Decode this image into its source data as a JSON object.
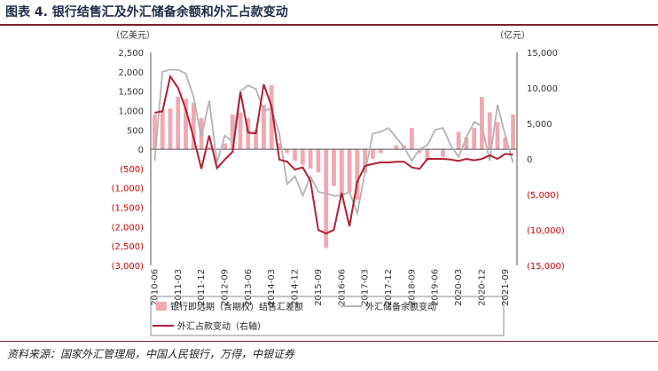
{
  "page": {
    "title": "图表 4. 银行结售汇及外汇储备余额和外汇占款变动",
    "source": "资料来源：国家外汇管理局，中国人民银行，万得，中银证券"
  },
  "colors": {
    "bar": "#f0a9b0",
    "gray": "#b3b3b3",
    "red": "#b21f35",
    "neg_label": "#cc0000",
    "axis": "#333333"
  },
  "chart_data": {
    "type": "bar",
    "left_unit": "（亿美元）",
    "right_unit": "（亿元）",
    "left_axis": {
      "min": -3000,
      "max": 2500,
      "ticks": [
        2500,
        2000,
        1500,
        1000,
        500,
        0,
        -500,
        -1000,
        -1500,
        -2000,
        -2500,
        -3000
      ],
      "tick_labels": [
        "2,500",
        "2,000",
        "1,500",
        "1,000",
        "500",
        "0",
        "(500)",
        "(1,000)",
        "(1,500)",
        "(2,000)",
        "(2,500)",
        "(3,000)"
      ]
    },
    "right_axis": {
      "min": -15000,
      "max": 15000,
      "ticks": [
        15000,
        10000,
        5000,
        0,
        -5000,
        -10000,
        -15000
      ],
      "tick_labels": [
        "15,000",
        "10,000",
        "5,000",
        "0",
        "(5,000)",
        "(10,000)",
        "(15,000)"
      ]
    },
    "x_labels": [
      "2010-06",
      "2011-03",
      "2011-12",
      "2012-09",
      "2013-06",
      "2014-03",
      "2014-12",
      "2015-09",
      "2016-06",
      "2017-03",
      "2017-12",
      "2018-09",
      "2019-06",
      "2020-03",
      "2020-12",
      "2021-09"
    ],
    "categories": [
      "2010Q2",
      "2010Q3",
      "2010Q4",
      "2011Q1",
      "2011Q2",
      "2011Q3",
      "2011Q4",
      "2012Q1",
      "2012Q2",
      "2012Q3",
      "2012Q4",
      "2013Q1",
      "2013Q2",
      "2013Q3",
      "2013Q4",
      "2014Q1",
      "2014Q2",
      "2014Q3",
      "2014Q4",
      "2015Q1",
      "2015Q2",
      "2015Q3",
      "2015Q4",
      "2016Q1",
      "2016Q2",
      "2016Q3",
      "2016Q4",
      "2017Q1",
      "2017Q2",
      "2017Q3",
      "2017Q4",
      "2018Q1",
      "2018Q2",
      "2018Q3",
      "2018Q4",
      "2019Q1",
      "2019Q2",
      "2019Q3",
      "2019Q4",
      "2020Q1",
      "2020Q2",
      "2020Q3",
      "2020Q4",
      "2021Q1",
      "2021Q2",
      "2021Q3",
      "2021Q4"
    ],
    "series": [
      {
        "name": "银行即远期（含期权）结售汇差额",
        "kind": "bar",
        "axis": "left",
        "values": [
          900,
          1000,
          1050,
          1350,
          1300,
          1200,
          800,
          50,
          0,
          150,
          900,
          950,
          800,
          500,
          1150,
          1650,
          150,
          -100,
          -300,
          -400,
          -500,
          -600,
          -2550,
          -950,
          -1250,
          -1100,
          -1300,
          -600,
          -250,
          -100,
          0,
          100,
          100,
          550,
          -100,
          -300,
          0,
          -200,
          0,
          450,
          300,
          550,
          1350,
          950,
          700,
          300,
          900
        ]
      },
      {
        "name": "外汇储备余额变动",
        "kind": "line",
        "axis": "left",
        "values": [
          -300,
          2000,
          2050,
          2050,
          1950,
          1350,
          300,
          1250,
          -350,
          350,
          200,
          1500,
          1650,
          1550,
          1000,
          1050,
          400,
          -900,
          -700,
          -1200,
          -700,
          -1100,
          -1150,
          -1200,
          -1200,
          -1100,
          -1650,
          -600,
          400,
          450,
          550,
          300,
          50,
          -300,
          0,
          100,
          500,
          550,
          100,
          -200,
          300,
          700,
          600,
          -300,
          1150,
          350,
          -350
        ]
      },
      {
        "name": "外汇占款变动（右轴）",
        "kind": "line",
        "axis": "right",
        "values": [
          6500,
          6700,
          11600,
          10000,
          7000,
          3000,
          -1400,
          3300,
          -1300,
          -100,
          1000,
          9400,
          3700,
          3600,
          10500,
          7400,
          -100,
          -400,
          -1500,
          -1200,
          -3100,
          -10000,
          -10500,
          -10000,
          -4800,
          -9500,
          -3200,
          -1000,
          -700,
          -500,
          -500,
          -400,
          -400,
          -1200,
          -1400,
          0,
          0,
          0,
          -100,
          -300,
          0,
          -200,
          0,
          500,
          0,
          700,
          600
        ]
      }
    ],
    "legend": [
      {
        "label": "银行即远期（含期权）结售汇差额",
        "kind": "bar"
      },
      {
        "label": "外汇储备余额变动",
        "kind": "gray-line"
      },
      {
        "label": "外汇占款变动（右轴）",
        "kind": "red-line"
      }
    ]
  }
}
